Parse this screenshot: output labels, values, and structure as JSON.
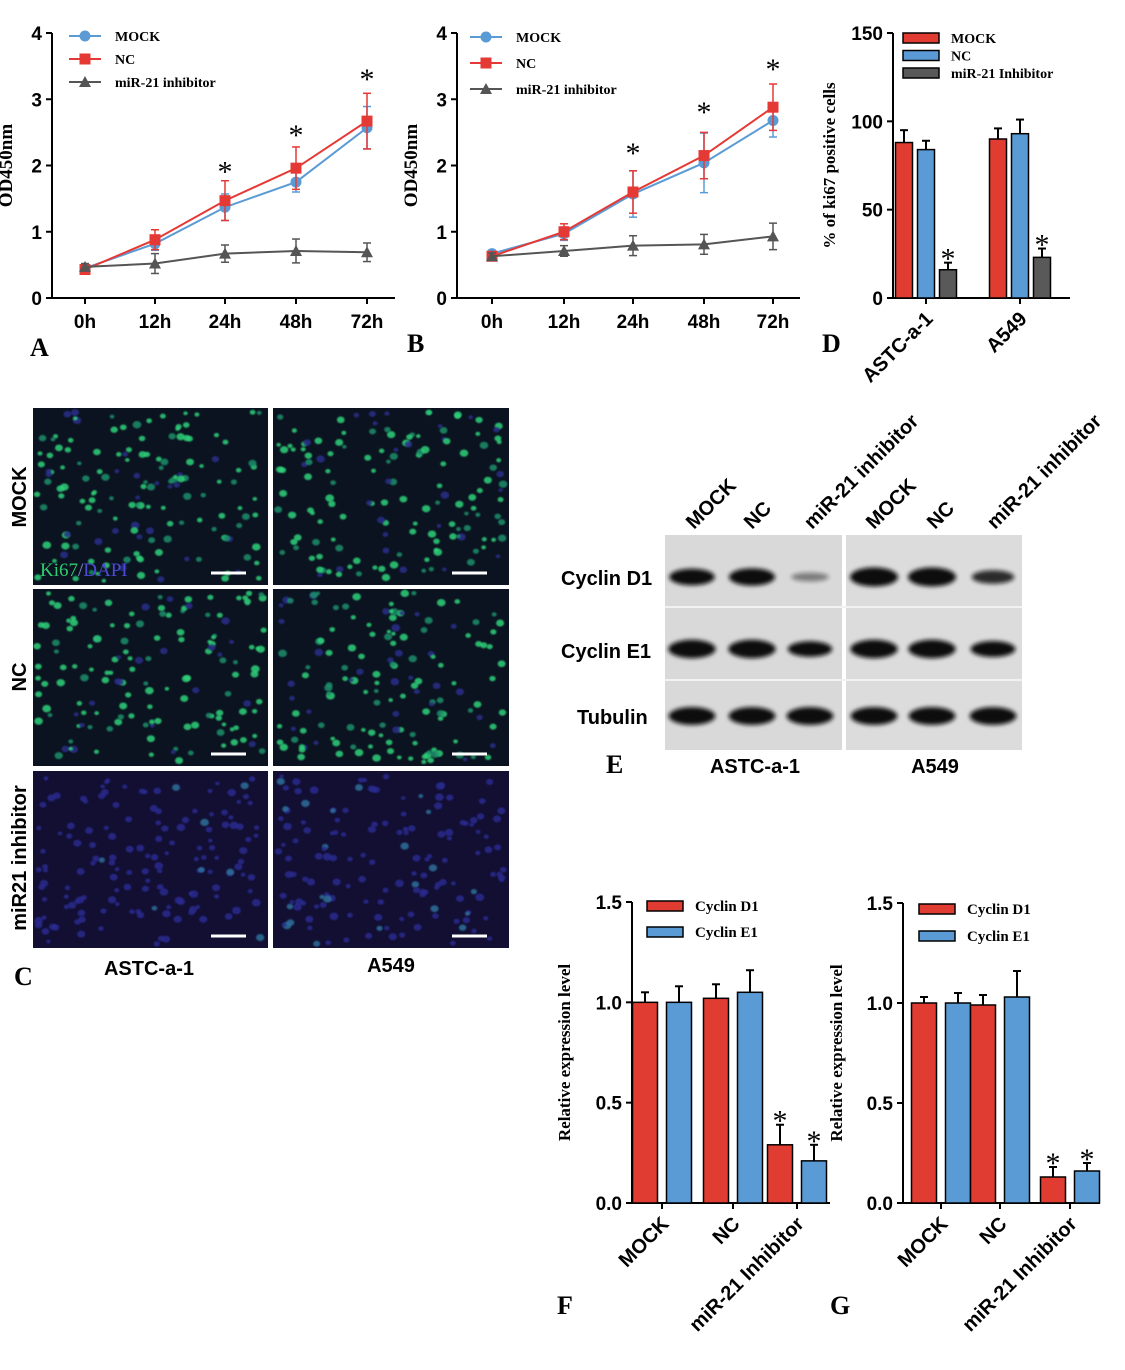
{
  "colors": {
    "mock": "#5B9BD5",
    "nc": "#E53935",
    "inhibitor": "#555555",
    "red_bar": "#E03C31",
    "blue_bar": "#5B9BD5",
    "gray_bar": "#595959",
    "green_text": "#2ECC71",
    "blue_text": "#4B4BD6"
  },
  "panel_letters": {
    "A": "A",
    "B": "B",
    "C": "C",
    "D": "D",
    "E": "E",
    "F": "F",
    "G": "G"
  },
  "chart_data": [
    {
      "panel": "A",
      "type": "line",
      "xlabel": "",
      "ylabel": "OD450nm",
      "categories": [
        "0h",
        "12h",
        "24h",
        "48h",
        "72h"
      ],
      "yticks": [
        "0",
        "1",
        "2",
        "3",
        "4"
      ],
      "ylim": [
        0,
        4
      ],
      "legend": "top-left",
      "series": [
        {
          "name": "MOCK",
          "key": "mock",
          "marker": "circle",
          "values": [
            0.45,
            0.82,
            1.37,
            1.75,
            2.57
          ],
          "err": [
            0.05,
            0.1,
            0.2,
            0.15,
            0.32
          ]
        },
        {
          "name": "NC",
          "key": "nc",
          "marker": "square",
          "values": [
            0.43,
            0.88,
            1.47,
            1.96,
            2.67
          ],
          "err": [
            0.05,
            0.15,
            0.3,
            0.32,
            0.42
          ]
        },
        {
          "name": "miR-21 inhibitor",
          "key": "inhibitor",
          "marker": "triangle",
          "values": [
            0.47,
            0.52,
            0.67,
            0.71,
            0.69
          ],
          "err": [
            0.05,
            0.15,
            0.13,
            0.18,
            0.14
          ]
        }
      ],
      "significance": [
        {
          "index": 2,
          "label": "*",
          "y": 2.0
        },
        {
          "index": 3,
          "label": "*",
          "y": 2.55
        },
        {
          "index": 4,
          "label": "*",
          "y": 3.4
        }
      ]
    },
    {
      "panel": "B",
      "type": "line",
      "xlabel": "",
      "ylabel": "OD450nm",
      "categories": [
        "0h",
        "12h",
        "24h",
        "48h",
        "72h"
      ],
      "yticks": [
        "0",
        "1",
        "2",
        "3",
        "4"
      ],
      "ylim": [
        0,
        4
      ],
      "legend": "top-left",
      "series": [
        {
          "name": "MOCK",
          "key": "mock",
          "marker": "circle",
          "values": [
            0.67,
            0.97,
            1.57,
            2.04,
            2.68
          ],
          "err": [
            0.05,
            0.1,
            0.35,
            0.45,
            0.25
          ]
        },
        {
          "name": "NC",
          "key": "nc",
          "marker": "square",
          "values": [
            0.63,
            1.0,
            1.6,
            2.15,
            2.88
          ],
          "err": [
            0.05,
            0.12,
            0.32,
            0.35,
            0.35
          ]
        },
        {
          "name": "miR-21 inhibitor",
          "key": "inhibitor",
          "marker": "triangle",
          "values": [
            0.63,
            0.71,
            0.79,
            0.81,
            0.93
          ],
          "err": [
            0.05,
            0.08,
            0.15,
            0.15,
            0.2
          ]
        }
      ],
      "significance": [
        {
          "index": 2,
          "label": "*",
          "y": 2.28
        },
        {
          "index": 3,
          "label": "*",
          "y": 2.9
        },
        {
          "index": 4,
          "label": "*",
          "y": 3.55
        }
      ]
    },
    {
      "panel": "D",
      "type": "bar",
      "xlabel": "",
      "ylabel": "% of ki67 positive cells",
      "categories": [
        "ASTC-a-1",
        "A549"
      ],
      "yticks": [
        "0",
        "50",
        "100",
        "150"
      ],
      "ylim": [
        0,
        150
      ],
      "legend": "top-right",
      "series": [
        {
          "name": "MOCK",
          "key": "red_bar",
          "values": [
            88,
            90
          ],
          "err": [
            7,
            6
          ]
        },
        {
          "name": "NC",
          "key": "blue_bar",
          "values": [
            84,
            93
          ],
          "err": [
            5,
            8
          ]
        },
        {
          "name": "miR-21 Inhibitor",
          "key": "gray_bar",
          "values": [
            16,
            23
          ],
          "err": [
            4,
            5
          ]
        }
      ],
      "significance": [
        {
          "series": 2,
          "index": 0,
          "label": "*"
        },
        {
          "series": 2,
          "index": 1,
          "label": "*"
        }
      ]
    },
    {
      "panel": "F",
      "type": "bar",
      "xlabel": "",
      "ylabel": "Relative expression level",
      "categories": [
        "MOCK",
        "NC",
        "miR-21 Inhibitor"
      ],
      "yticks": [
        "0.0",
        "0.5",
        "1.0",
        "1.5"
      ],
      "ylim": [
        0,
        1.5
      ],
      "legend": "top-left",
      "series": [
        {
          "name": "Cyclin D1",
          "key": "red_bar",
          "values": [
            1.0,
            1.02,
            0.29
          ],
          "err": [
            0.05,
            0.07,
            0.1
          ]
        },
        {
          "name": "Cyclin E1",
          "key": "blue_bar",
          "values": [
            1.0,
            1.05,
            0.21
          ],
          "err": [
            0.08,
            0.11,
            0.08
          ]
        }
      ],
      "significance": [
        {
          "series": 0,
          "index": 2,
          "label": "*"
        },
        {
          "series": 1,
          "index": 2,
          "label": "*"
        }
      ]
    },
    {
      "panel": "G",
      "type": "bar",
      "xlabel": "",
      "ylabel": "Relative expression level",
      "categories": [
        "MOCK",
        "NC",
        "miR-21 Inhibitor"
      ],
      "yticks": [
        "0.0",
        "0.5",
        "1.0",
        "1.5"
      ],
      "ylim": [
        0,
        1.5
      ],
      "legend": "top-left",
      "series": [
        {
          "name": "Cyclin D1",
          "key": "red_bar",
          "values": [
            1.0,
            0.99,
            0.13
          ],
          "err": [
            0.03,
            0.05,
            0.05
          ]
        },
        {
          "name": "Cyclin E1",
          "key": "blue_bar",
          "values": [
            1.0,
            1.03,
            0.16
          ],
          "err": [
            0.05,
            0.13,
            0.04
          ]
        }
      ],
      "significance": [
        {
          "series": 0,
          "index": 2,
          "label": "*"
        },
        {
          "series": 1,
          "index": 2,
          "label": "*"
        }
      ]
    }
  ],
  "microscopy": {
    "rows": [
      "MOCK",
      "NC",
      "miR21 inhibitor"
    ],
    "columns": [
      "ASTC-a-1",
      "A549"
    ],
    "stain_ki67": "Ki67",
    "stain_sep": "/",
    "stain_dapi": "DAPI",
    "ki67_signal": [
      1,
      1,
      0
    ]
  },
  "western": {
    "lanes_left": [
      "MOCK",
      "NC",
      "miR-21 inhibitor"
    ],
    "lanes_right": [
      "MOCK",
      "NC",
      "miR-21 inhibitor"
    ],
    "rows": [
      "Cyclin D1",
      "Cyclin E1",
      "Tubulin"
    ],
    "groups": [
      "ASTC-a-1",
      "A549"
    ],
    "band_intensity": {
      "Cyclin D1": [
        0.8,
        0.85,
        0.15,
        1.0,
        1.0,
        0.55
      ],
      "Cyclin E1": [
        0.95,
        0.95,
        0.7,
        0.95,
        0.95,
        0.75
      ],
      "Tubulin": [
        0.9,
        0.9,
        0.9,
        0.9,
        0.9,
        0.9
      ]
    }
  }
}
